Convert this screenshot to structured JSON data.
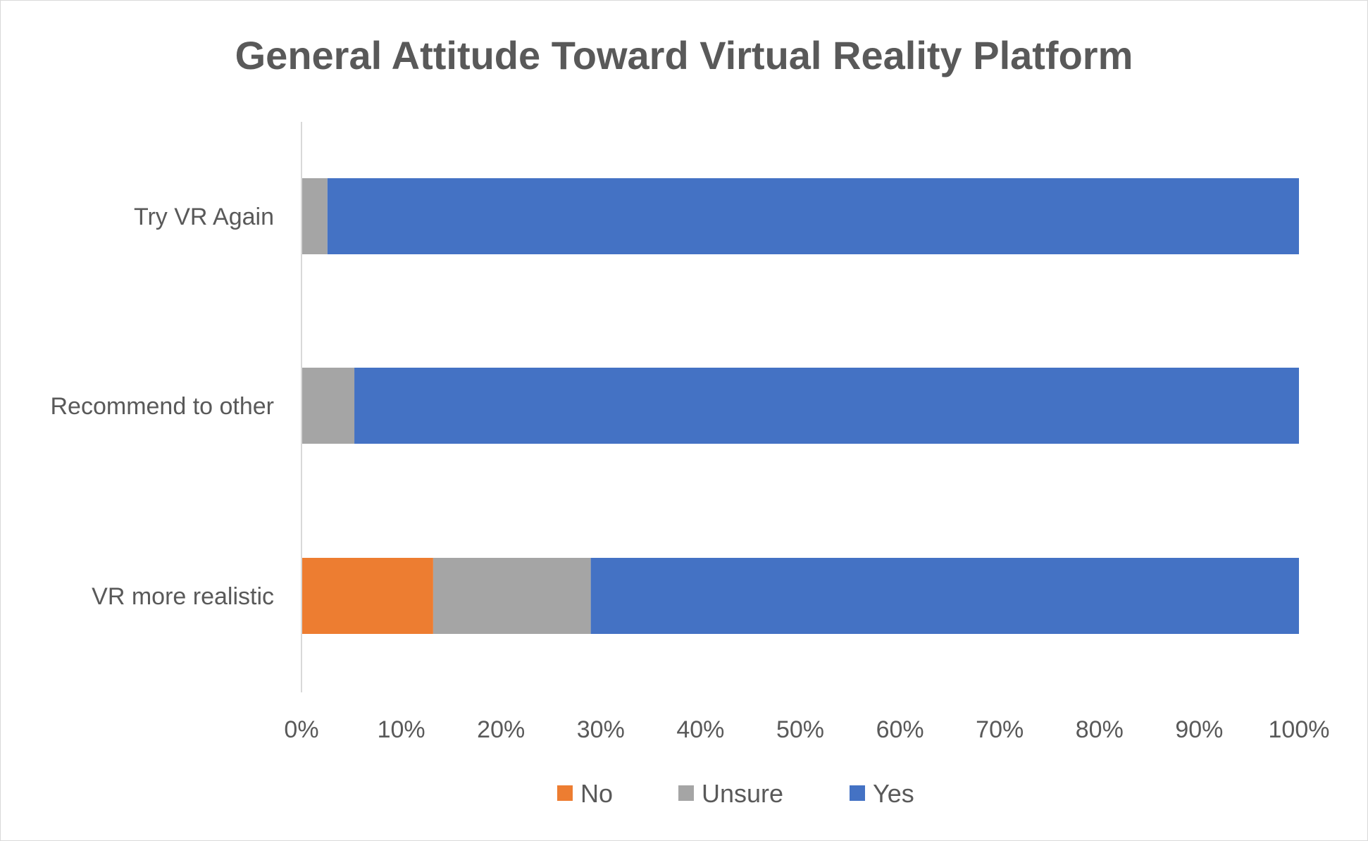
{
  "chart_data": {
    "type": "bar",
    "orientation": "horizontal",
    "stacked": "percent",
    "title": "General Attitude Toward Virtual Reality Platform",
    "xlabel": "",
    "ylabel": "",
    "categories": [
      "Try VR Again",
      "Recommend to other",
      "VR more realistic"
    ],
    "series": [
      {
        "name": "No",
        "color": "#ED7D31",
        "values": [
          0,
          0,
          13.2
        ]
      },
      {
        "name": "Unsure",
        "color": "#A5A5A5",
        "values": [
          2.6,
          5.3,
          15.8
        ]
      },
      {
        "name": "Yes",
        "color": "#4472C4",
        "values": [
          97.4,
          94.7,
          71.0
        ]
      }
    ],
    "xlim": [
      0,
      100
    ],
    "xticks": [
      "0%",
      "10%",
      "20%",
      "30%",
      "40%",
      "50%",
      "60%",
      "70%",
      "80%",
      "90%",
      "100%"
    ],
    "grid": false,
    "legend": "bottom"
  }
}
